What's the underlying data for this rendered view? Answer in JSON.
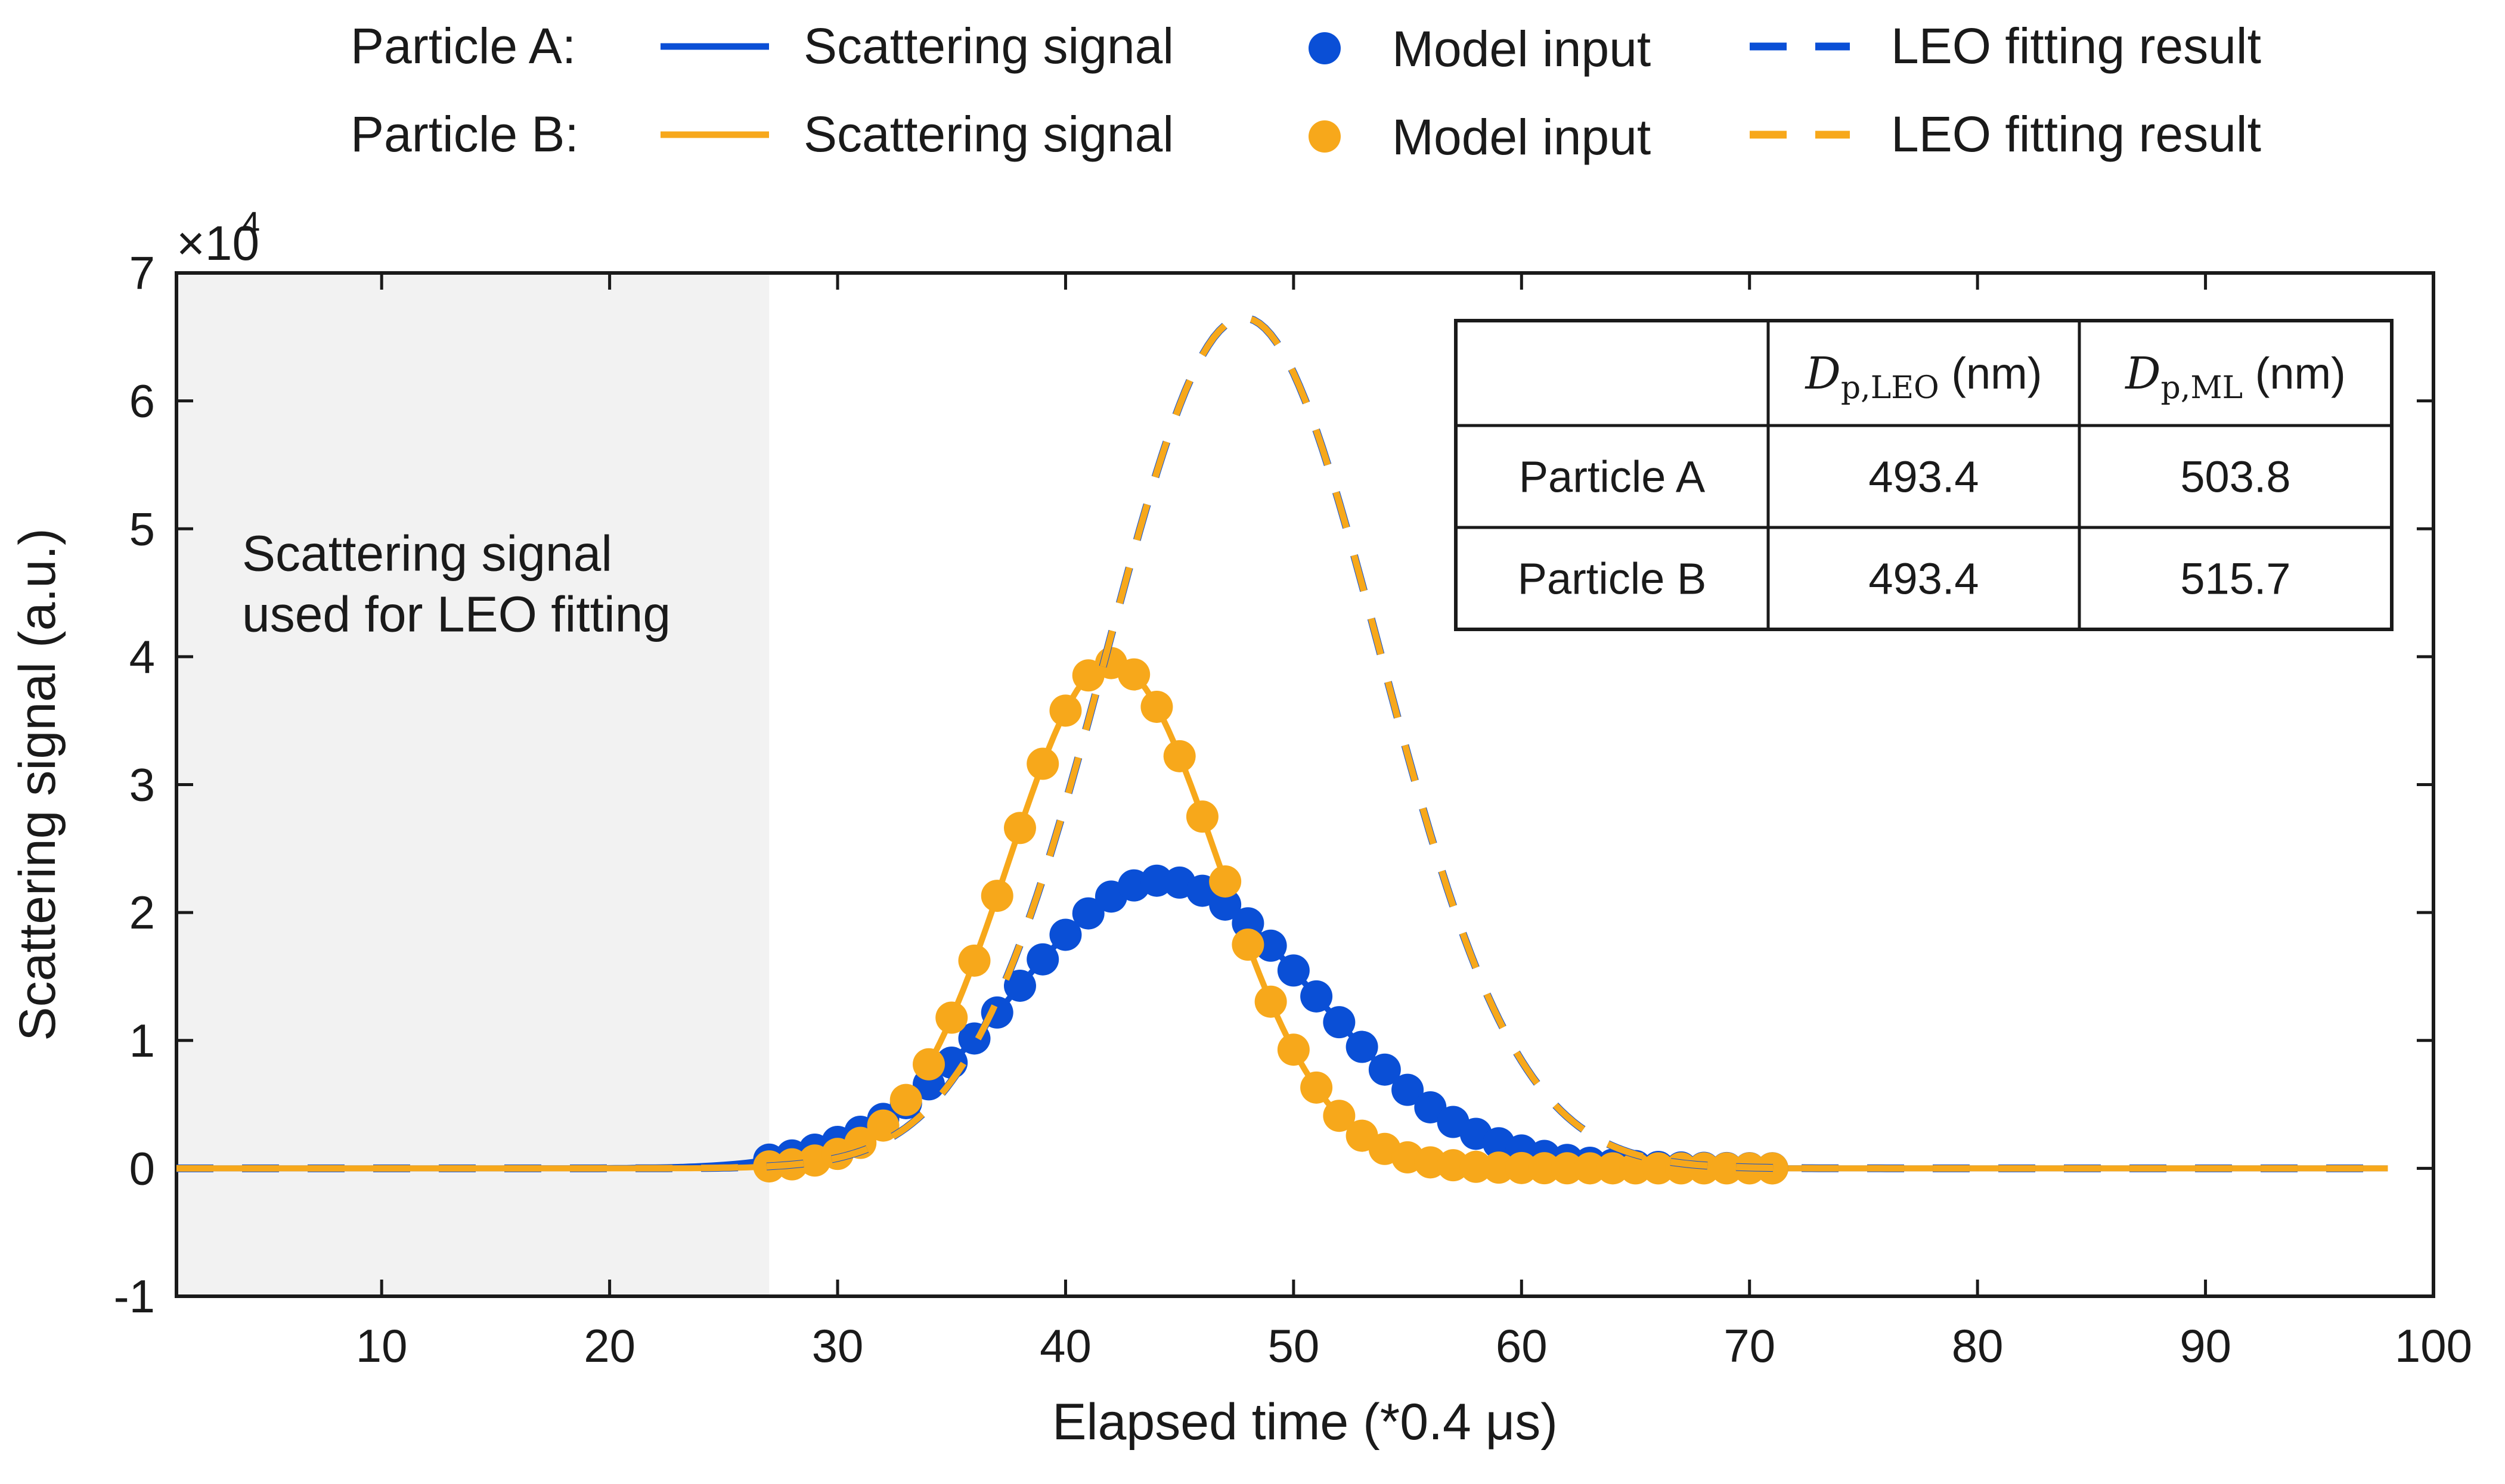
{
  "chart_data": {
    "type": "line",
    "xlabel": "Elapsed time (*0.4 μs)",
    "ylabel": "Scattering signal (a.u.)",
    "xlim": [
      1,
      100
    ],
    "ylim": [
      -1,
      7
    ],
    "y_multiplier": "×10",
    "y_multiplier_exp": "4",
    "xticks": [
      10,
      20,
      30,
      40,
      50,
      60,
      70,
      80,
      90,
      100
    ],
    "xtick_labels": [
      "10",
      "20",
      "30",
      "40",
      "50",
      "60",
      "70",
      "80",
      "90",
      "100"
    ],
    "yticks": [
      -1,
      0,
      1,
      2,
      3,
      4,
      5,
      6,
      7
    ],
    "ytick_labels": [
      "-1",
      "0",
      "1",
      "2",
      "3",
      "4",
      "5",
      "6",
      "7"
    ],
    "shaded_region": {
      "x_range": [
        1,
        27
      ],
      "label_line1": "Scattering signal",
      "label_line2": "used for LEO fitting",
      "color": "#f2f2f2"
    },
    "colors": {
      "particle_a": "#0a4fd6",
      "particle_b": "#f7a81b"
    },
    "legend": {
      "position": "top",
      "rows": [
        {
          "particle": "Particle A:",
          "signal": "Scattering signal",
          "model": "Model input",
          "fit": "LEO fitting result"
        },
        {
          "particle": "Particle B:",
          "signal": "Scattering signal",
          "model": "Model input",
          "fit": "LEO fitting result"
        }
      ]
    },
    "series": [
      {
        "name": "Particle A scattering signal",
        "style": "solid",
        "gaussian": {
          "amplitude": 2.25,
          "center": 44.2,
          "sigma_left": 6.5,
          "sigma_right": 6.7
        },
        "x_range": [
          1,
          98
        ]
      },
      {
        "name": "Particle B scattering signal",
        "style": "solid",
        "gaussian": {
          "amplitude": 3.95,
          "center": 42.0,
          "sigma_left": 4.5,
          "sigma_right": 4.7
        },
        "x_range": [
          1,
          98
        ]
      },
      {
        "name": "Particle A model input",
        "style": "markers",
        "gaussian": {
          "amplitude": 2.25,
          "center": 44.2,
          "sigma_left": 6.5,
          "sigma_right": 6.7
        },
        "x_range": [
          27,
          71
        ]
      },
      {
        "name": "Particle B model input",
        "style": "markers",
        "gaussian": {
          "amplitude": 3.95,
          "center": 42.0,
          "sigma_left": 4.5,
          "sigma_right": 4.7
        },
        "x_range": [
          27,
          71
        ]
      },
      {
        "name": "Particle A LEO fitting result",
        "style": "dashed",
        "gaussian": {
          "amplitude": 6.65,
          "center": 47.8,
          "sigma_left": 6.0,
          "sigma_right": 6.0
        },
        "x_range": [
          1,
          98
        ]
      },
      {
        "name": "Particle B LEO fitting result",
        "style": "dashed",
        "gaussian": {
          "amplitude": 6.65,
          "center": 47.8,
          "sigma_left": 6.0,
          "sigma_right": 6.0
        },
        "x_range": [
          1,
          98
        ]
      }
    ],
    "table": {
      "headers": [
        "",
        "D",
        "D"
      ],
      "header_subscripts": [
        "",
        "p,LEO",
        "p,ML"
      ],
      "header_units": [
        "",
        "(nm)",
        "(nm)"
      ],
      "rows": [
        [
          "Particle A",
          "493.4",
          "503.8"
        ],
        [
          "Particle B",
          "493.4",
          "515.7"
        ]
      ]
    }
  }
}
